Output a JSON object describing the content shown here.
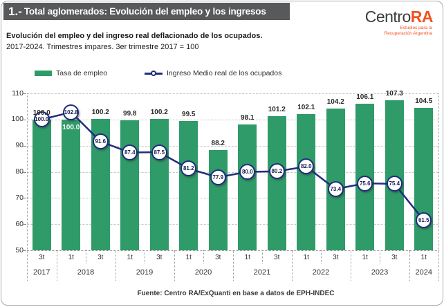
{
  "header": {
    "number": "1.-",
    "title": "Total aglomerados: Evolución del empleo y los ingresos"
  },
  "logo": {
    "name_black": "Centro",
    "name_accent": "RA",
    "tagline_line1": "Estudios para la",
    "tagline_line2": "Recuperación Argentina",
    "accent_color": "#f4501e"
  },
  "subtitle": {
    "line1": "Evolución del empleo y del ingreso real deflacionado de los ocupados.",
    "line2": "2017-2024. Trimestres impares. 3er trimestre 2017 = 100"
  },
  "legend": {
    "items": [
      {
        "label": "Tasa de empleo",
        "type": "bar",
        "color": "#2f9b68"
      },
      {
        "label": "Ingreso Medio real de los ocupados",
        "type": "line-marker",
        "color": "#1f2c7c"
      }
    ],
    "position": "top"
  },
  "footer": "Fuente: Centro RA/ExQuanti en base a datos de EPH-INDEC",
  "chart_data": {
    "type": "bar+line",
    "title": "Evolución del empleo y del ingreso real deflacionado de los ocupados.",
    "subtitle": "2017-2024. Trimestres impares. 3er trimestre 2017 = 100",
    "x_quarters": [
      "3t",
      "1t",
      "3t",
      "1t",
      "3t",
      "1t",
      "3t",
      "1t",
      "3t",
      "1t",
      "3t",
      "1t",
      "3t",
      "1t"
    ],
    "year_groups": [
      {
        "year": "2017",
        "count": 1
      },
      {
        "year": "2018",
        "count": 2
      },
      {
        "year": "2019",
        "count": 2
      },
      {
        "year": "2020",
        "count": 2
      },
      {
        "year": "2021",
        "count": 2
      },
      {
        "year": "2022",
        "count": 2
      },
      {
        "year": "2023",
        "count": 2
      },
      {
        "year": "2024",
        "count": 1
      }
    ],
    "series": [
      {
        "name": "Tasa de empleo",
        "type": "bar",
        "color": "#2f9b68",
        "values": [
          100.0,
          100.0,
          100.2,
          99.8,
          100.2,
          99.5,
          88.2,
          98.1,
          101.2,
          102.1,
          104.2,
          106.1,
          107.3,
          104.5
        ]
      },
      {
        "name": "Ingreso Medio real de los ocupados",
        "type": "line",
        "color": "#1f2c7c",
        "marker": "labeled-circle",
        "values": [
          100.0,
          102.8,
          91.6,
          87.4,
          87.5,
          81.2,
          77.9,
          80.0,
          80.2,
          82.0,
          73.4,
          75.6,
          75.4,
          61.5
        ]
      }
    ],
    "ylim": [
      50,
      110
    ],
    "yticks": [
      50,
      60,
      70,
      80,
      90,
      100,
      110
    ],
    "grid": "horizontal-dashed",
    "legend_position": "top",
    "value_decimals": 1,
    "source": "Fuente: Centro RA/ExQuanti en base a datos de EPH-INDEC"
  }
}
